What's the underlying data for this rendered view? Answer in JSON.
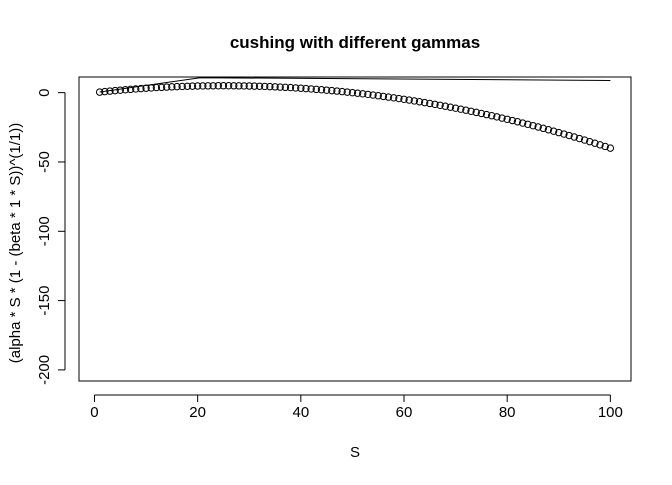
{
  "chart_data": {
    "type": "scatter",
    "title": "cushing with different gammas",
    "xlabel": "S",
    "ylabel": "(alpha * S * (1 - (beta * 1 * S))^(1/1))",
    "xlim": [
      -3,
      104
    ],
    "ylim": [
      -208,
      11.3
    ],
    "x_ticks": [
      0,
      20,
      40,
      60,
      80,
      100
    ],
    "y_ticks": [
      0,
      -50,
      -100,
      -150,
      -200
    ],
    "grid": false,
    "series": [
      {
        "kind": "points",
        "marker": "open-circle",
        "formula": "0.4*S*(1 - 0.02*S)",
        "x": [
          1,
          2,
          3,
          4,
          5,
          6,
          7,
          8,
          9,
          10,
          11,
          12,
          13,
          14,
          15,
          16,
          17,
          18,
          19,
          20,
          21,
          22,
          23,
          24,
          25,
          26,
          27,
          28,
          29,
          30,
          31,
          32,
          33,
          34,
          35,
          36,
          37,
          38,
          39,
          40,
          41,
          42,
          43,
          44,
          45,
          46,
          47,
          48,
          49,
          50,
          51,
          52,
          53,
          54,
          55,
          56,
          57,
          58,
          59,
          60,
          61,
          62,
          63,
          64,
          65,
          66,
          67,
          68,
          69,
          70,
          71,
          72,
          73,
          74,
          75,
          76,
          77,
          78,
          79,
          80,
          81,
          82,
          83,
          84,
          85,
          86,
          87,
          88,
          89,
          90,
          91,
          92,
          93,
          94,
          95,
          96,
          97,
          98,
          99,
          100
        ],
        "y": [
          0.39,
          0.77,
          1.13,
          1.47,
          1.8,
          2.11,
          2.41,
          2.69,
          2.95,
          3.2,
          3.43,
          3.65,
          3.85,
          4.03,
          4.2,
          4.35,
          4.49,
          4.61,
          4.71,
          4.8,
          4.87,
          4.93,
          4.97,
          4.99,
          5,
          4.99,
          4.97,
          4.93,
          4.87,
          4.8,
          4.71,
          4.61,
          4.49,
          4.35,
          4.2,
          4.03,
          3.85,
          3.65,
          3.43,
          3.2,
          2.95,
          2.69,
          2.41,
          2.11,
          1.8,
          1.47,
          1.13,
          0.77,
          0.39,
          0,
          -0.41,
          -0.83,
          -1.27,
          -1.73,
          -2.2,
          -2.69,
          -3.19,
          -3.71,
          -4.25,
          -4.8,
          -5.37,
          -5.95,
          -6.55,
          -7.17,
          -7.8,
          -8.45,
          -9.11,
          -9.79,
          -10.49,
          -11.2,
          -11.93,
          -12.67,
          -13.43,
          -14.21,
          -15,
          -15.81,
          -16.63,
          -17.47,
          -18.33,
          -19.2,
          -20.09,
          -20.99,
          -21.91,
          -22.85,
          -23.8,
          -24.77,
          -25.75,
          -26.75,
          -27.77,
          -28.8,
          -29.85,
          -30.91,
          -31.99,
          -33.09,
          -34.2,
          -35.33,
          -36.47,
          -37.63,
          -38.81,
          -40
        ]
      },
      {
        "kind": "line",
        "x": [
          1,
          20.5,
          100
        ],
        "y": [
          0.5,
          10.8,
          8.8
        ]
      }
    ]
  }
}
